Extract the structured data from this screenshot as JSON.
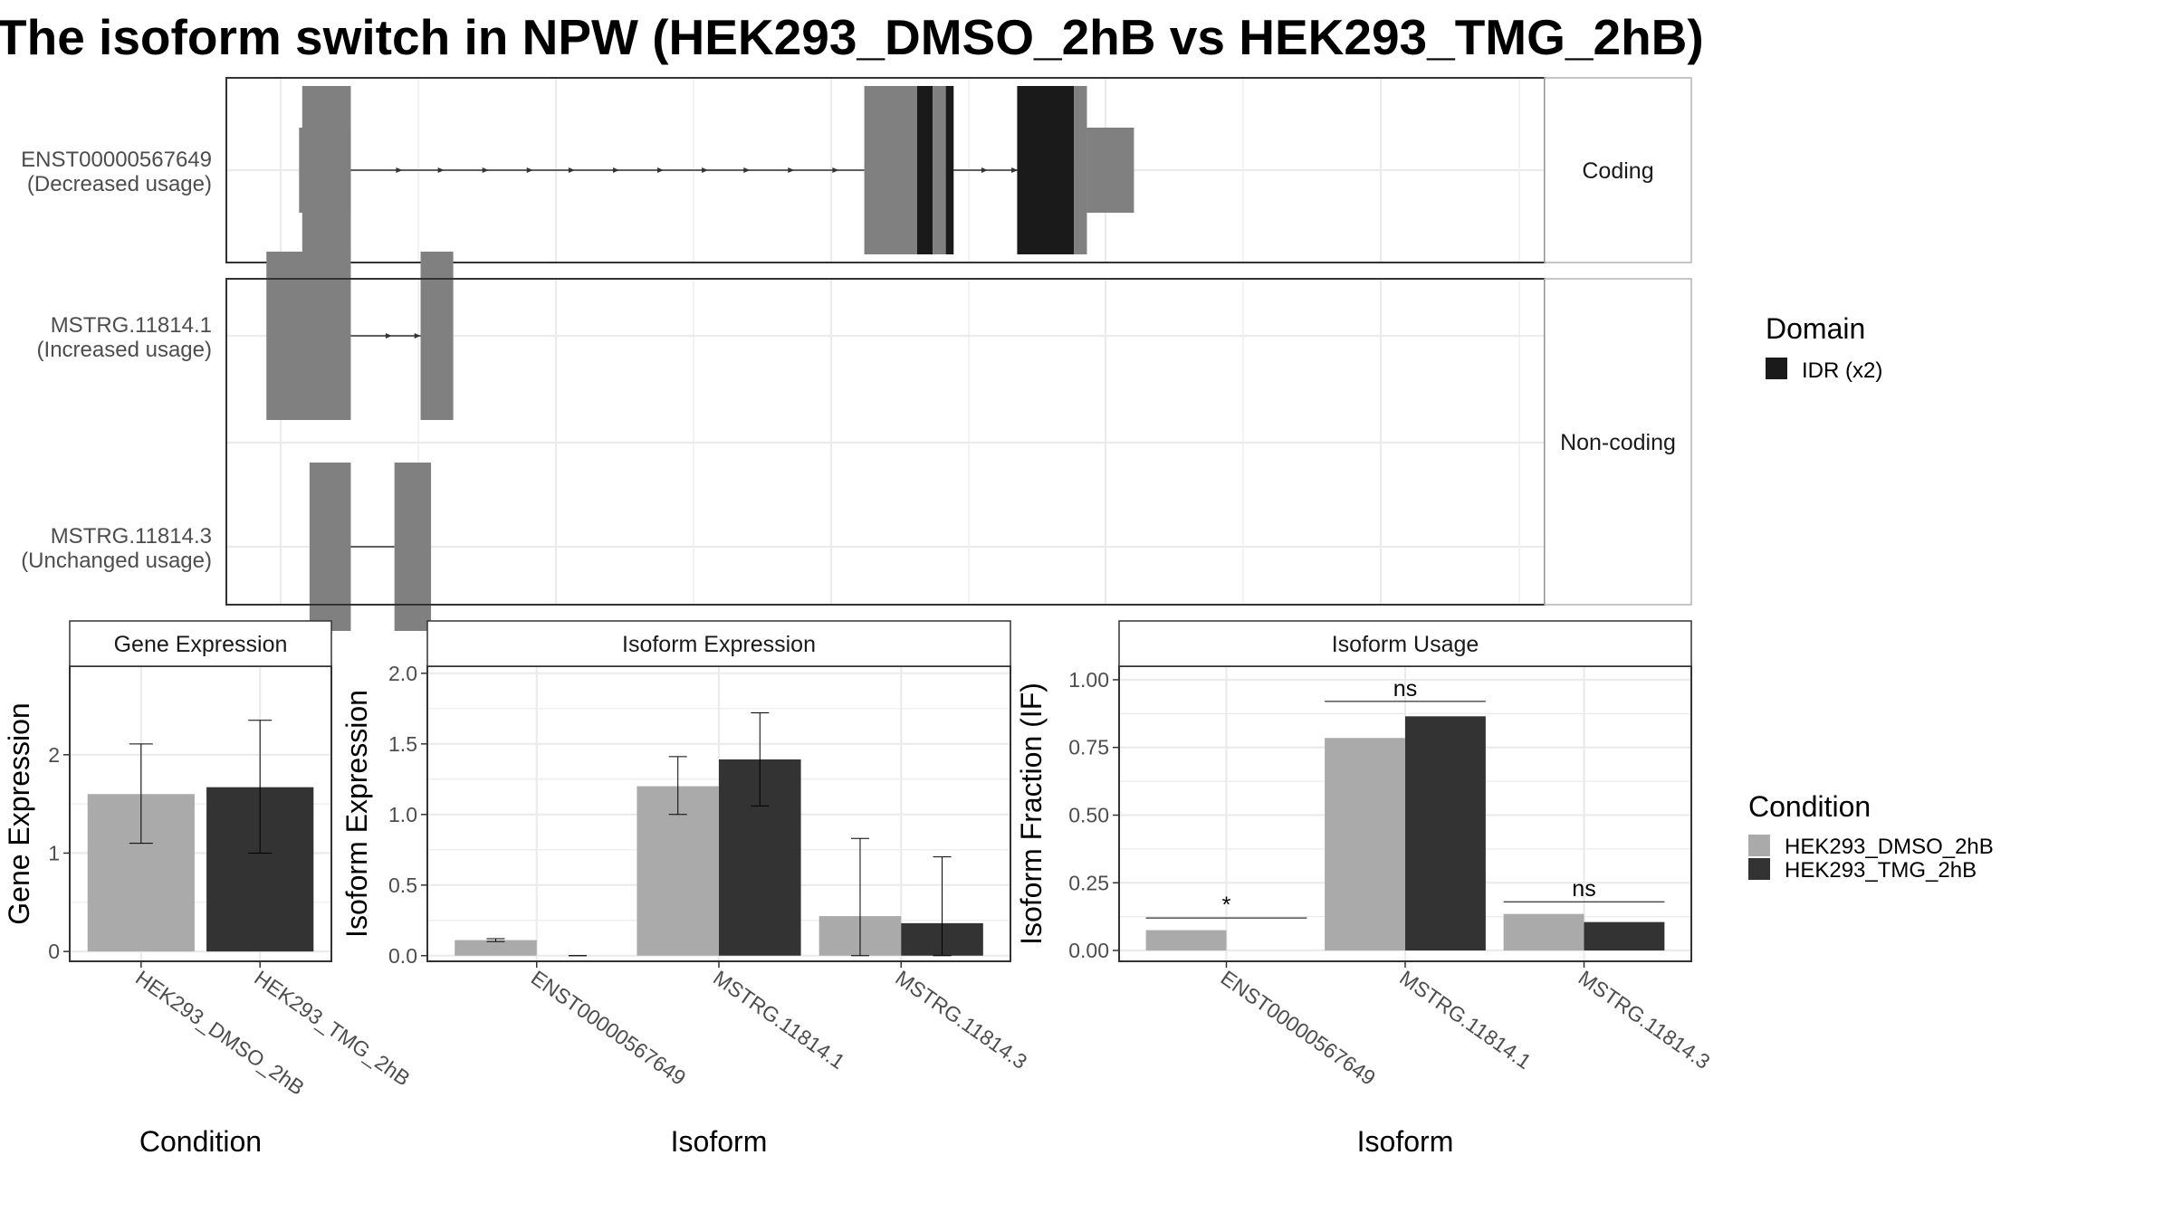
{
  "title": "The isoform switch in NPW (HEK293_DMSO_2hB vs HEK293_TMG_2hB)",
  "colors": {
    "exon": "#808080",
    "domain_idr": "#1a1a1a",
    "dmso": "#aaaaaa",
    "tmg": "#333333",
    "grid": "#ebebeb",
    "strip_bg": "#ffffff",
    "panel_border": "#333333"
  },
  "transcript_plot": {
    "transcripts": [
      {
        "id": "ENST00000567649",
        "usage": "(Decreased usage)",
        "group": "Coding",
        "segments": [
          {
            "start": 1.5,
            "end": 21.3,
            "kind": "thin"
          },
          {
            "start": 2.7,
            "end": 21.3,
            "kind": "exon"
          },
          {
            "start": 217.8,
            "end": 238.0,
            "kind": "exon"
          },
          {
            "start": 238.0,
            "end": 244.0,
            "kind": "idr"
          },
          {
            "start": 244.0,
            "end": 249.0,
            "kind": "exon"
          },
          {
            "start": 249.0,
            "end": 252.0,
            "kind": "idr"
          },
          {
            "start": 276.3,
            "end": 298.0,
            "kind": "idr"
          },
          {
            "start": 298.0,
            "end": 303.0,
            "kind": "exon"
          },
          {
            "start": 303.0,
            "end": 321.0,
            "kind": "thin"
          }
        ],
        "introns": [
          [
            21.3,
            217.8
          ],
          [
            252.0,
            276.3
          ]
        ],
        "arrows": [
          40,
          56,
          73,
          90,
          106,
          123,
          140,
          157,
          173,
          190,
          207,
          264,
          275.5
        ]
      },
      {
        "id": "MSTRG.11814.1",
        "usage": "(Increased usage)",
        "group": "Non-coding",
        "segments": [
          {
            "start": -11.0,
            "end": 21.3,
            "kind": "exon"
          },
          {
            "start": 48.0,
            "end": 60.5,
            "kind": "exon"
          }
        ],
        "introns": [
          [
            21.3,
            48.0
          ]
        ],
        "arrows": [
          36,
          47
        ]
      },
      {
        "id": "MSTRG.11814.3",
        "usage": "(Unchanged usage)",
        "group": "Non-coding",
        "segments": [
          {
            "start": 5.5,
            "end": 21.3,
            "kind": "exon"
          },
          {
            "start": 38.0,
            "end": 52.0,
            "kind": "exon"
          }
        ],
        "introns": [
          [
            21.3,
            38.0
          ]
        ],
        "arrows": []
      }
    ],
    "facets": [
      "Coding",
      "Non-coding"
    ]
  },
  "legend_domain": {
    "title": "Domain",
    "items": [
      {
        "label": "IDR (x2)",
        "color": "#1a1a1a"
      }
    ]
  },
  "legend_condition": {
    "title": "Condition",
    "items": [
      {
        "label": "HEK293_DMSO_2hB",
        "color": "#aaaaaa"
      },
      {
        "label": "HEK293_TMG_2hB",
        "color": "#333333"
      }
    ]
  },
  "chart_data": [
    {
      "type": "bar",
      "title": "Gene Expression",
      "xlabel": "Condition",
      "ylabel": "Gene Expression",
      "categories": [
        "HEK293_DMSO_2hB",
        "HEK293_TMG_2hB"
      ],
      "values": [
        1.6,
        1.67
      ],
      "error_low": [
        1.1,
        1.0
      ],
      "error_high": [
        2.11,
        2.35
      ],
      "bar_colors": [
        "#aaaaaa",
        "#333333"
      ],
      "ylim": [
        -0.1,
        2.9
      ],
      "yticks": [
        0,
        1,
        2
      ],
      "ytick_labels": [
        "0",
        "1",
        "2"
      ],
      "grid": true
    },
    {
      "type": "bar",
      "title": "Isoform Expression",
      "xlabel": "Isoform",
      "ylabel": "Isoform Expression",
      "categories": [
        "ENST00000567649",
        "MSTRG.11814.1",
        "MSTRG.11814.3"
      ],
      "series": [
        {
          "name": "HEK293_DMSO_2hB",
          "values": [
            0.11,
            1.2,
            0.28
          ],
          "error_low": [
            0.1,
            1.0,
            0.0
          ],
          "error_high": [
            0.12,
            1.41,
            0.83
          ]
        },
        {
          "name": "HEK293_TMG_2hB",
          "values": [
            0.0,
            1.39,
            0.23
          ],
          "error_low": [
            0.0,
            1.06,
            0.0
          ],
          "error_high": [
            0.0,
            1.72,
            0.7
          ]
        }
      ],
      "ylim": [
        -0.04,
        2.05
      ],
      "yticks": [
        0,
        0.5,
        1,
        1.5,
        2
      ],
      "ytick_labels": [
        "0.0",
        "0.5",
        "1.0",
        "1.5",
        "2.0"
      ],
      "grid": true
    },
    {
      "type": "bar",
      "title": "Isoform Usage",
      "xlabel": "Isoform",
      "ylabel": "Isoform Fraction (IF)",
      "categories": [
        "ENST00000567649",
        "MSTRG.11814.1",
        "MSTRG.11814.3"
      ],
      "series": [
        {
          "name": "HEK293_DMSO_2hB",
          "values": [
            0.075,
            0.785,
            0.135
          ]
        },
        {
          "name": "HEK293_TMG_2hB",
          "values": [
            0.0,
            0.865,
            0.105
          ]
        }
      ],
      "significance": [
        {
          "category": "ENST00000567649",
          "label": "*",
          "y": 0.12
        },
        {
          "category": "MSTRG.11814.1",
          "label": "ns",
          "y": 0.92
        },
        {
          "category": "MSTRG.11814.3",
          "label": "ns",
          "y": 0.18
        }
      ],
      "ylim": [
        -0.04,
        1.05
      ],
      "yticks": [
        0,
        0.25,
        0.5,
        0.75,
        1.0
      ],
      "ytick_labels": [
        "0.00",
        "0.25",
        "0.50",
        "0.75",
        "1.00"
      ],
      "grid": true
    }
  ]
}
